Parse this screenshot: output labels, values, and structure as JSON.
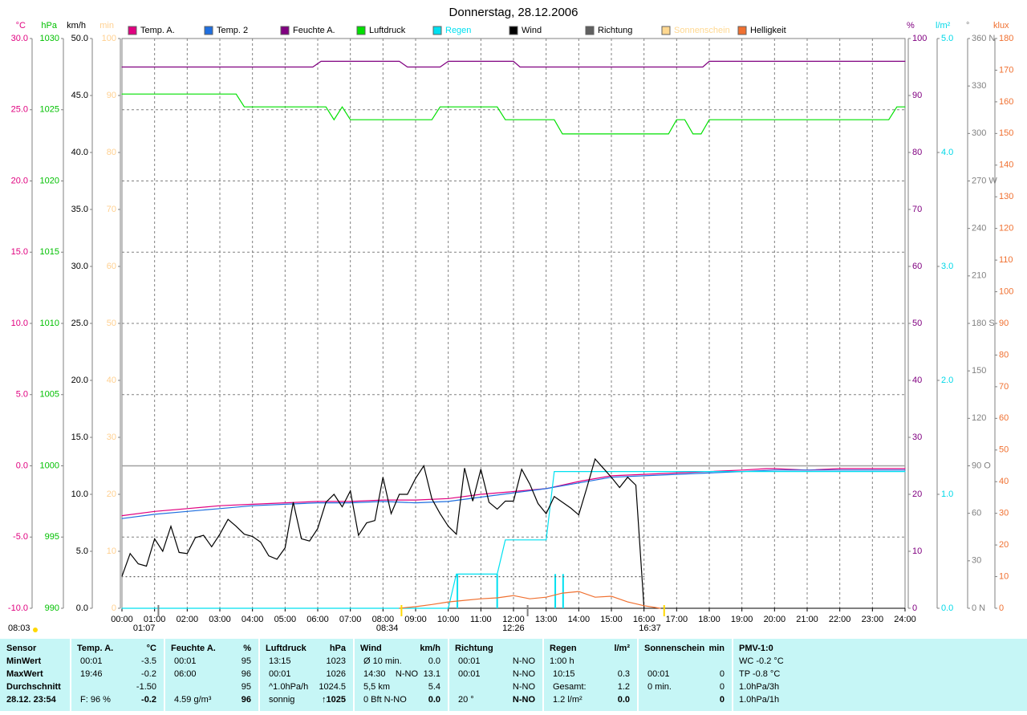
{
  "chart_data": {
    "type": "line",
    "title": "Donnerstag, 28.12.2006",
    "xlim": [
      0,
      24
    ],
    "xticks": [
      {
        "value": 0,
        "label": "00:00"
      },
      {
        "value": 1,
        "label": "01:00"
      },
      {
        "value": 2,
        "label": "02:00"
      },
      {
        "value": 3,
        "label": "03:00"
      },
      {
        "value": 4,
        "label": "04:00"
      },
      {
        "value": 5,
        "label": "05:00"
      },
      {
        "value": 6,
        "label": "06:00"
      },
      {
        "value": 7,
        "label": "07:00"
      },
      {
        "value": 8,
        "label": "08:00"
      },
      {
        "value": 9,
        "label": "09:00"
      },
      {
        "value": 10,
        "label": "10:00"
      },
      {
        "value": 11,
        "label": "11:00"
      },
      {
        "value": 12,
        "label": "12:00"
      },
      {
        "value": 13,
        "label": "13:00"
      },
      {
        "value": 14,
        "label": "14:00"
      },
      {
        "value": 15,
        "label": "15:00"
      },
      {
        "value": 16,
        "label": "16:00"
      },
      {
        "value": 17,
        "label": "17:00"
      },
      {
        "value": 18,
        "label": "18:00"
      },
      {
        "value": 19,
        "label": "19:00"
      },
      {
        "value": 20,
        "label": "20:00"
      },
      {
        "value": 21,
        "label": "21:00"
      },
      {
        "value": 22,
        "label": "22:00"
      },
      {
        "value": 23,
        "label": "23:00"
      },
      {
        "value": 24,
        "label": "24:00"
      }
    ],
    "grid": true,
    "axes": [
      {
        "unit": "°C",
        "color": "#e0007f",
        "lim": [
          -10,
          30
        ],
        "ticks": [
          {
            "value": 30,
            "label": "30.0"
          },
          {
            "value": 25,
            "label": "25.0"
          },
          {
            "value": 20,
            "label": "20.0"
          },
          {
            "value": 15,
            "label": "15.0"
          },
          {
            "value": 10,
            "label": "10.0"
          },
          {
            "value": 5,
            "label": "5.0"
          },
          {
            "value": 0,
            "label": "0.0"
          },
          {
            "value": -5,
            "label": "-5.0"
          },
          {
            "value": -10,
            "label": "-10.0"
          }
        ]
      },
      {
        "unit": "hPa",
        "color": "#00c000",
        "lim": [
          990,
          1030
        ],
        "ticks": [
          1030,
          1025,
          1020,
          1015,
          1010,
          1005,
          1000,
          995,
          990
        ]
      },
      {
        "unit": "km/h",
        "color": "#000000",
        "lim": [
          0,
          50
        ],
        "ticks": [
          {
            "value": 50,
            "label": "50.0"
          },
          {
            "value": 45,
            "label": "45.0"
          },
          {
            "value": 40,
            "label": "40.0"
          },
          {
            "value": 35,
            "label": "35.0"
          },
          {
            "value": 30,
            "label": "30.0"
          },
          {
            "value": 25,
            "label": "25.0"
          },
          {
            "value": 20,
            "label": "20.0"
          },
          {
            "value": 15,
            "label": "15.0"
          },
          {
            "value": 10,
            "label": "10.0"
          },
          {
            "value": 5,
            "label": "5.0"
          },
          {
            "value": 0,
            "label": "0.0"
          }
        ]
      },
      {
        "unit": "min",
        "color": "#ffd090",
        "lim": [
          0,
          100
        ],
        "ticks": [
          100,
          90,
          80,
          70,
          60,
          50,
          40,
          30,
          20,
          10,
          0
        ]
      },
      {
        "unit": "%",
        "color": "#800080",
        "lim": [
          0,
          100
        ],
        "ticks": [
          100,
          90,
          80,
          70,
          60,
          50,
          40,
          30,
          20,
          10,
          0
        ]
      },
      {
        "unit": "l/m²",
        "color": "#00d8e8",
        "lim": [
          0,
          5
        ],
        "ticks": [
          {
            "value": 5,
            "label": "5.0"
          },
          {
            "value": 4,
            "label": "4.0"
          },
          {
            "value": 3,
            "label": "3.0"
          },
          {
            "value": 2,
            "label": "2.0"
          },
          {
            "value": 1,
            "label": "1.0"
          },
          {
            "value": 0,
            "label": "0.0"
          }
        ]
      },
      {
        "unit": "°",
        "color": "#808080",
        "lim": [
          0,
          360
        ],
        "ticks": [
          {
            "value": 360,
            "label": "360 N"
          },
          330,
          300,
          {
            "value": 270,
            "label": "270 W"
          },
          240,
          210,
          {
            "value": 180,
            "label": "180 S"
          },
          150,
          120,
          {
            "value": 90,
            "label": "90 O"
          },
          60,
          30,
          {
            "value": 0,
            "label": "0 N"
          }
        ]
      },
      {
        "unit": "klux",
        "color": "#f07030",
        "lim": [
          0,
          180
        ],
        "ticks": [
          180,
          170,
          160,
          150,
          140,
          130,
          120,
          110,
          100,
          90,
          80,
          70,
          60,
          50,
          40,
          30,
          20,
          10,
          0
        ]
      }
    ],
    "series": [
      {
        "name": "Temp. A.",
        "color": "#e0007f",
        "axis": "°C",
        "x": [
          0,
          1,
          2,
          3,
          4,
          5,
          6,
          7,
          8,
          9,
          10,
          11,
          12,
          13,
          14,
          15,
          16,
          17,
          18,
          19,
          19.75,
          20,
          21,
          22,
          23,
          24
        ],
        "values": [
          -3.5,
          -3.2,
          -3.0,
          -2.8,
          -2.7,
          -2.6,
          -2.5,
          -2.5,
          -2.4,
          -2.4,
          -2.3,
          -2.0,
          -1.8,
          -1.6,
          -1.1,
          -0.7,
          -0.6,
          -0.5,
          -0.4,
          -0.3,
          -0.2,
          -0.2,
          -0.3,
          -0.2,
          -0.2,
          -0.2
        ]
      },
      {
        "name": "Temp. 2",
        "color": "#1f6fe0",
        "axis": "°C",
        "x": [
          0,
          1,
          2,
          3,
          4,
          5,
          6,
          7,
          8,
          9,
          10,
          11,
          12,
          13,
          14,
          15,
          16,
          17,
          18,
          19,
          20,
          21,
          22,
          23,
          24
        ],
        "values": [
          -3.7,
          -3.4,
          -3.2,
          -3.0,
          -2.8,
          -2.7,
          -2.6,
          -2.6,
          -2.5,
          -2.6,
          -2.5,
          -2.2,
          -1.9,
          -1.6,
          -1.2,
          -0.8,
          -0.7,
          -0.6,
          -0.5,
          -0.4,
          -0.3,
          -0.3,
          -0.3,
          -0.3,
          -0.3
        ]
      },
      {
        "name": "Feuchte A.",
        "color": "#800080",
        "axis": "%",
        "x": [
          0,
          5.85,
          6.1,
          8.5,
          8.75,
          9.75,
          10,
          12.0,
          12.2,
          17.8,
          18.0,
          24
        ],
        "values": [
          95,
          95,
          96,
          96,
          95,
          95,
          96,
          96,
          95,
          95,
          96,
          96
        ]
      },
      {
        "name": "Luftdruck",
        "color": "#00e000",
        "axis": "hPa",
        "x": [
          0,
          3.5,
          3.75,
          6.25,
          6.5,
          6.75,
          7.0,
          9.5,
          9.75,
          11.5,
          11.75,
          13.25,
          13.5,
          16.75,
          17.0,
          17.25,
          17.5,
          17.75,
          18.0,
          23.5,
          23.75,
          24
        ],
        "values": [
          1026.1,
          1026.1,
          1025.2,
          1025.2,
          1024.3,
          1025.2,
          1024.3,
          1024.3,
          1025.2,
          1025.2,
          1024.3,
          1024.3,
          1023.3,
          1023.3,
          1024.3,
          1024.3,
          1023.3,
          1023.3,
          1024.3,
          1024.3,
          1025.2,
          1025.2
        ]
      },
      {
        "name": "Regen",
        "color": "#00e0f0",
        "label_color": "#00e0f0",
        "axis": "l/m²",
        "x": [
          0,
          10.0,
          10.25,
          11.5,
          11.75,
          13.0,
          13.25,
          24
        ],
        "values": [
          0,
          0,
          0.3,
          0.3,
          0.6,
          0.6,
          1.2,
          1.2
        ],
        "bar_x": [
          10.28,
          11.5,
          13.28,
          13.52
        ],
        "bar_values": [
          0.3,
          0.3,
          0.3,
          0.3
        ]
      },
      {
        "name": "Wind",
        "color": "#000000",
        "axis": "km/h",
        "x": [
          0,
          0.25,
          0.5,
          0.75,
          1,
          1.25,
          1.5,
          1.75,
          2,
          2.25,
          2.5,
          2.75,
          3,
          3.25,
          3.5,
          3.75,
          4,
          4.25,
          4.5,
          4.75,
          5,
          5.25,
          5.5,
          5.75,
          6,
          6.25,
          6.5,
          6.75,
          7,
          7.25,
          7.5,
          7.75,
          8,
          8.25,
          8.5,
          8.75,
          9,
          9.25,
          9.5,
          9.75,
          10,
          10.25,
          10.5,
          10.75,
          11,
          11.25,
          11.5,
          11.75,
          12,
          12.25,
          12.5,
          12.75,
          13,
          13.25,
          13.5,
          13.75,
          14,
          14.25,
          14.5,
          14.75,
          15,
          15.25,
          15.5,
          15.75,
          16
        ],
        "values": [
          2.8,
          4.8,
          3.9,
          3.7,
          6.1,
          5.0,
          7.2,
          4.9,
          4.8,
          6.2,
          6.4,
          5.4,
          6.5,
          7.8,
          7.2,
          6.5,
          6.3,
          5.8,
          4.6,
          4.3,
          5.3,
          9.3,
          6.1,
          5.9,
          7.0,
          9.3,
          10.0,
          8.9,
          10.3,
          6.4,
          7.5,
          7.7,
          11.5,
          8.3,
          10.0,
          10.0,
          11.4,
          12.5,
          9.6,
          8.3,
          7.2,
          6.5,
          12.3,
          9.4,
          12.2,
          9.3,
          8.7,
          9.4,
          9.4,
          12.2,
          10.9,
          9.2,
          8.3,
          9.8,
          9.3,
          8.8,
          8.2,
          10.6,
          13.1,
          12.3,
          11.5,
          10.6,
          11.5,
          10.8,
          0.0
        ]
      },
      {
        "name": "Richtung",
        "color": "#606060",
        "axis": "°",
        "dash": "dotted",
        "x": [
          0,
          16
        ],
        "values": [
          20,
          20
        ]
      },
      {
        "name": "Sonnenschein",
        "color": "#ffd890",
        "label_color": "#ffd890",
        "axis": "min",
        "x": [],
        "values": []
      },
      {
        "name": "Helligkeit",
        "color": "#f07030",
        "axis": "klux",
        "x": [
          8.5,
          9,
          9.5,
          10,
          10.5,
          11,
          11.5,
          12,
          12.5,
          13,
          13.5,
          14,
          14.5,
          15,
          15.5,
          16,
          16.5
        ],
        "values": [
          0,
          0.5,
          1.2,
          2.0,
          2.5,
          3.0,
          3.3,
          4.0,
          3.0,
          3.5,
          4.8,
          5.3,
          3.5,
          3.8,
          2.0,
          0.8,
          0
        ]
      }
    ],
    "annotations": [
      {
        "text": "08:03",
        "color": "#ffd800"
      },
      {
        "text": "01:07",
        "x": 1.117,
        "color": "#808080"
      },
      {
        "text": "08:34",
        "x": 8.567,
        "color": "#ffd800"
      },
      {
        "text": "12:26",
        "x": 12.433,
        "color": "#808080"
      },
      {
        "text": "16:37",
        "x": 16.617,
        "color": "#ffd800"
      }
    ]
  },
  "table": {
    "columns": [
      {
        "header": [
          "Sensor"
        ],
        "rows": [
          [
            "MinWert"
          ],
          [
            "MaxWert"
          ],
          [
            "Durchschnitt"
          ],
          [
            "28.12.  23:54"
          ]
        ]
      },
      {
        "header": [
          "Temp. A.",
          "°C"
        ],
        "rows": [
          [
            "00:01",
            "-3.5"
          ],
          [
            "19:46",
            "-0.2"
          ],
          [
            null,
            "-1.50"
          ],
          [
            "F: 96 %",
            "-0.2"
          ]
        ]
      },
      {
        "header": [
          "Feuchte A.",
          "%"
        ],
        "rows": [
          [
            "00:01",
            "95"
          ],
          [
            "06:00",
            "96"
          ],
          [
            null,
            "95"
          ],
          [
            "4.59 g/m³",
            "96"
          ]
        ]
      },
      {
        "header": [
          "Luftdruck",
          "hPa"
        ],
        "rows": [
          [
            "13:15",
            "1023"
          ],
          [
            "00:01",
            "1026"
          ],
          [
            "^1.0hPa/h",
            "1024.5"
          ],
          [
            "sonnig",
            "↑1025"
          ]
        ]
      },
      {
        "header": [
          "Wind",
          "km/h"
        ],
        "rows": [
          [
            "Ø 10 min.",
            null,
            "0.0"
          ],
          [
            "14:30",
            "N-NO",
            "13.1"
          ],
          [
            "5,5 km",
            null,
            "5.4"
          ],
          [
            "0 Bft N-NO",
            null,
            "0.0"
          ]
        ]
      },
      {
        "header": [
          "Richtung"
        ],
        "rows": [
          [
            "00:01",
            "N-NO"
          ],
          [
            "00:01",
            "N-NO"
          ],
          [
            null,
            "N-NO"
          ],
          [
            "20 °",
            "N-NO"
          ]
        ]
      },
      {
        "header": [
          "Regen",
          "l/m²"
        ],
        "rows": [
          [
            "1:00 h"
          ],
          [
            "10:15",
            "0.3"
          ],
          [
            "Gesamt:",
            "1.2"
          ],
          [
            "1.2 l/m²",
            "0.0"
          ]
        ]
      },
      {
        "header": [
          "Sonnenschein",
          "min"
        ],
        "rows": [
          [],
          [
            "00:01",
            "0"
          ],
          [
            "0 min.",
            "0"
          ],
          [
            null,
            "0"
          ]
        ]
      },
      {
        "header": [
          "PMV-1:0"
        ],
        "rows": [
          [
            "WC -0.2 °C"
          ],
          [
            "TP -0.8 °C"
          ],
          [
            "1.0hPa/3h"
          ],
          [
            "1.0hPa/1h"
          ]
        ]
      }
    ]
  }
}
